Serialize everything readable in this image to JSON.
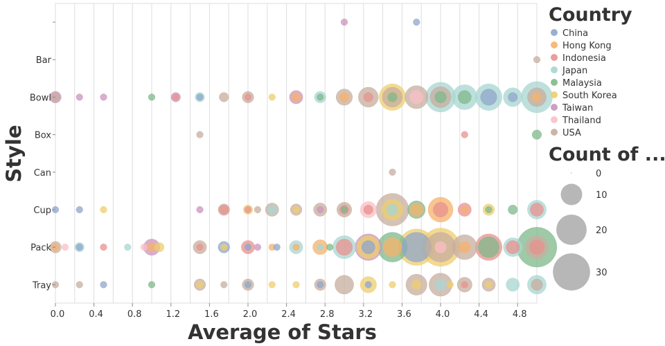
{
  "chart_data": {
    "type": "scatter",
    "title": "",
    "xlabel": "Average of Stars",
    "ylabel": "Style",
    "xlim": [
      0,
      5
    ],
    "x_ticks": [
      0.0,
      0.4,
      0.8,
      1.2,
      1.6,
      2.0,
      2.4,
      2.8,
      3.2,
      3.6,
      4.0,
      4.4,
      4.8
    ],
    "x_tick_labels": [
      "0.0",
      "0.4",
      "0.8",
      "1.2",
      "1.6",
      "2.0",
      "2.4",
      "2.8",
      "3.2",
      "3.6",
      "4.0",
      "4.4",
      "4.8"
    ],
    "x_gridlines": [
      0.0,
      0.2,
      0.4,
      0.6,
      0.8,
      1.0,
      1.2,
      1.4,
      1.6,
      1.8,
      2.0,
      2.2,
      2.4,
      2.6,
      2.8,
      3.0,
      3.2,
      3.4,
      3.6,
      3.8,
      4.0,
      4.2,
      4.4,
      4.6,
      4.8,
      5.0
    ],
    "categories": [
      "",
      "Bar",
      "Bowl",
      "Box",
      "Can",
      "Cup",
      "Pack",
      "Tray"
    ],
    "color_legend": {
      "title": "Country",
      "position": "top-right",
      "items": [
        {
          "label": "China",
          "color": "#8fa6c9"
        },
        {
          "label": "Hong Kong",
          "color": "#f5b26b"
        },
        {
          "label": "Indonesia",
          "color": "#e8928e"
        },
        {
          "label": "Japan",
          "color": "#a8d5d1"
        },
        {
          "label": "Malaysia",
          "color": "#7fb88a"
        },
        {
          "label": "South Korea",
          "color": "#edce6e"
        },
        {
          "label": "Taiwan",
          "color": "#c994bd"
        },
        {
          "label": "Thailand",
          "color": "#f9bfc6"
        },
        {
          "label": "USA",
          "color": "#c7ad9f"
        }
      ]
    },
    "size_legend": {
      "title": "Count of ...",
      "items": [
        {
          "label": "0",
          "value": 0
        },
        {
          "label": "10",
          "value": 10
        },
        {
          "label": "20",
          "value": 20
        },
        {
          "label": "30",
          "value": 30
        }
      ]
    },
    "points": [
      {
        "style": "",
        "x": 3.0,
        "country": "Taiwan",
        "count": 1
      },
      {
        "style": "",
        "x": 3.75,
        "country": "China",
        "count": 1
      },
      {
        "style": "Bar",
        "x": 5.0,
        "country": "USA",
        "count": 1
      },
      {
        "style": "Bowl",
        "x": 0.0,
        "country": "Taiwan",
        "count": 3
      },
      {
        "style": "Bowl",
        "x": 0.0,
        "country": "USA",
        "count": 2
      },
      {
        "style": "Bowl",
        "x": 0.25,
        "country": "Taiwan",
        "count": 1
      },
      {
        "style": "Bowl",
        "x": 0.5,
        "country": "Taiwan",
        "count": 1
      },
      {
        "style": "Bowl",
        "x": 1.0,
        "country": "Malaysia",
        "count": 1
      },
      {
        "style": "Bowl",
        "x": 1.25,
        "country": "Taiwan",
        "count": 2
      },
      {
        "style": "Bowl",
        "x": 1.25,
        "country": "Indonesia",
        "count": 1
      },
      {
        "style": "Bowl",
        "x": 1.5,
        "country": "Japan",
        "count": 2
      },
      {
        "style": "Bowl",
        "x": 1.5,
        "country": "China",
        "count": 1
      },
      {
        "style": "Bowl",
        "x": 1.75,
        "country": "USA",
        "count": 2
      },
      {
        "style": "Bowl",
        "x": 2.0,
        "country": "USA",
        "count": 3
      },
      {
        "style": "Bowl",
        "x": 2.0,
        "country": "Indonesia",
        "count": 1
      },
      {
        "style": "Bowl",
        "x": 2.25,
        "country": "South Korea",
        "count": 1
      },
      {
        "style": "Bowl",
        "x": 2.5,
        "country": "Taiwan",
        "count": 4
      },
      {
        "style": "Bowl",
        "x": 2.5,
        "country": "Hong Kong",
        "count": 2
      },
      {
        "style": "Bowl",
        "x": 2.75,
        "country": "Japan",
        "count": 3
      },
      {
        "style": "Bowl",
        "x": 2.75,
        "country": "Malaysia",
        "count": 1
      },
      {
        "style": "Bowl",
        "x": 3.0,
        "country": "USA",
        "count": 6
      },
      {
        "style": "Bowl",
        "x": 3.0,
        "country": "Hong Kong",
        "count": 2
      },
      {
        "style": "Bowl",
        "x": 3.25,
        "country": "USA",
        "count": 9
      },
      {
        "style": "Bowl",
        "x": 3.25,
        "country": "Indonesia",
        "count": 2
      },
      {
        "style": "Bowl",
        "x": 3.5,
        "country": "South Korea",
        "count": 16
      },
      {
        "style": "Bowl",
        "x": 3.5,
        "country": "USA",
        "count": 9
      },
      {
        "style": "Bowl",
        "x": 3.5,
        "country": "Malaysia",
        "count": 2
      },
      {
        "style": "Bowl",
        "x": 3.75,
        "country": "USA",
        "count": 12
      },
      {
        "style": "Bowl",
        "x": 3.75,
        "country": "Thailand",
        "count": 4
      },
      {
        "style": "Bowl",
        "x": 4.0,
        "country": "Japan",
        "count": 20
      },
      {
        "style": "Bowl",
        "x": 4.0,
        "country": "USA",
        "count": 10
      },
      {
        "style": "Bowl",
        "x": 4.0,
        "country": "Malaysia",
        "count": 3
      },
      {
        "style": "Bowl",
        "x": 4.25,
        "country": "Japan",
        "count": 14
      },
      {
        "style": "Bowl",
        "x": 4.25,
        "country": "Malaysia",
        "count": 4
      },
      {
        "style": "Bowl",
        "x": 4.5,
        "country": "Japan",
        "count": 16
      },
      {
        "style": "Bowl",
        "x": 4.5,
        "country": "China",
        "count": 6
      },
      {
        "style": "Bowl",
        "x": 4.75,
        "country": "Japan",
        "count": 8
      },
      {
        "style": "Bowl",
        "x": 4.75,
        "country": "China",
        "count": 2
      },
      {
        "style": "Bowl",
        "x": 5.0,
        "country": "Japan",
        "count": 22
      },
      {
        "style": "Bowl",
        "x": 5.0,
        "country": "USA",
        "count": 8
      },
      {
        "style": "Bowl",
        "x": 5.0,
        "country": "Hong Kong",
        "count": 2
      },
      {
        "style": "Box",
        "x": 1.5,
        "country": "USA",
        "count": 1
      },
      {
        "style": "Box",
        "x": 4.25,
        "country": "Indonesia",
        "count": 1
      },
      {
        "style": "Box",
        "x": 5.0,
        "country": "Malaysia",
        "count": 2
      },
      {
        "style": "Can",
        "x": 3.5,
        "country": "USA",
        "count": 1
      },
      {
        "style": "Cup",
        "x": 0.0,
        "country": "China",
        "count": 1
      },
      {
        "style": "Cup",
        "x": 0.25,
        "country": "China",
        "count": 1
      },
      {
        "style": "Cup",
        "x": 0.5,
        "country": "South Korea",
        "count": 1
      },
      {
        "style": "Cup",
        "x": 1.5,
        "country": "Taiwan",
        "count": 1
      },
      {
        "style": "Cup",
        "x": 1.75,
        "country": "USA",
        "count": 3
      },
      {
        "style": "Cup",
        "x": 1.75,
        "country": "Indonesia",
        "count": 2
      },
      {
        "style": "Cup",
        "x": 2.0,
        "country": "South Korea",
        "count": 2
      },
      {
        "style": "Cup",
        "x": 2.0,
        "country": "Indonesia",
        "count": 1
      },
      {
        "style": "Cup",
        "x": 2.1,
        "country": "USA",
        "count": 1
      },
      {
        "style": "Cup",
        "x": 2.25,
        "country": "USA",
        "count": 4
      },
      {
        "style": "Cup",
        "x": 2.25,
        "country": "Japan",
        "count": 2
      },
      {
        "style": "Cup",
        "x": 2.5,
        "country": "USA",
        "count": 3
      },
      {
        "style": "Cup",
        "x": 2.5,
        "country": "South Korea",
        "count": 1
      },
      {
        "style": "Cup",
        "x": 2.75,
        "country": "USA",
        "count": 4
      },
      {
        "style": "Cup",
        "x": 2.75,
        "country": "Taiwan",
        "count": 1
      },
      {
        "style": "Cup",
        "x": 3.0,
        "country": "USA",
        "count": 5
      },
      {
        "style": "Cup",
        "x": 3.0,
        "country": "Indonesia",
        "count": 2
      },
      {
        "style": "Cup",
        "x": 3.0,
        "country": "Malaysia",
        "count": 1
      },
      {
        "style": "Cup",
        "x": 3.25,
        "country": "Thailand",
        "count": 6
      },
      {
        "style": "Cup",
        "x": 3.25,
        "country": "Indonesia",
        "count": 2
      },
      {
        "style": "Cup",
        "x": 3.5,
        "country": "USA",
        "count": 24
      },
      {
        "style": "Cup",
        "x": 3.5,
        "country": "South Korea",
        "count": 10
      },
      {
        "style": "Cup",
        "x": 3.5,
        "country": "Japan",
        "count": 3
      },
      {
        "style": "Cup",
        "x": 3.75,
        "country": "Malaysia",
        "count": 7
      },
      {
        "style": "Cup",
        "x": 3.75,
        "country": "Hong Kong",
        "count": 4
      },
      {
        "style": "Cup",
        "x": 4.0,
        "country": "Hong Kong",
        "count": 14
      },
      {
        "style": "Cup",
        "x": 4.0,
        "country": "Indonesia",
        "count": 5
      },
      {
        "style": "Cup",
        "x": 4.25,
        "country": "Indonesia",
        "count": 4
      },
      {
        "style": "Cup",
        "x": 4.25,
        "country": "Hong Kong",
        "count": 1
      },
      {
        "style": "Cup",
        "x": 4.5,
        "country": "South Korea",
        "count": 3
      },
      {
        "style": "Cup",
        "x": 4.5,
        "country": "Malaysia",
        "count": 1
      },
      {
        "style": "Cup",
        "x": 4.75,
        "country": "Malaysia",
        "count": 2
      },
      {
        "style": "Cup",
        "x": 5.0,
        "country": "Japan",
        "count": 8
      },
      {
        "style": "Cup",
        "x": 5.0,
        "country": "Indonesia",
        "count": 4
      },
      {
        "style": "Pack",
        "x": 0.0,
        "country": "USA",
        "count": 3
      },
      {
        "style": "Pack",
        "x": 0.0,
        "country": "Hong Kong",
        "count": 1
      },
      {
        "style": "Pack",
        "x": 0.1,
        "country": "Thailand",
        "count": 1
      },
      {
        "style": "Pack",
        "x": 0.25,
        "country": "Japan",
        "count": 2
      },
      {
        "style": "Pack",
        "x": 0.25,
        "country": "China",
        "count": 1
      },
      {
        "style": "Pack",
        "x": 0.5,
        "country": "Indonesia",
        "count": 1
      },
      {
        "style": "Pack",
        "x": 0.75,
        "country": "Japan",
        "count": 1
      },
      {
        "style": "Pack",
        "x": 0.92,
        "country": "Thailand",
        "count": 1
      },
      {
        "style": "Pack",
        "x": 1.0,
        "country": "Taiwan",
        "count": 6
      },
      {
        "style": "Pack",
        "x": 1.0,
        "country": "Hong Kong",
        "count": 2
      },
      {
        "style": "Pack",
        "x": 1.08,
        "country": "South Korea",
        "count": 2
      },
      {
        "style": "Pack",
        "x": 1.5,
        "country": "USA",
        "count": 4
      },
      {
        "style": "Pack",
        "x": 1.5,
        "country": "Indonesia",
        "count": 1
      },
      {
        "style": "Pack",
        "x": 1.75,
        "country": "China",
        "count": 3
      },
      {
        "style": "Pack",
        "x": 1.75,
        "country": "South Korea",
        "count": 1
      },
      {
        "style": "Pack",
        "x": 2.0,
        "country": "Indonesia",
        "count": 4
      },
      {
        "style": "Pack",
        "x": 2.0,
        "country": "China",
        "count": 1
      },
      {
        "style": "Pack",
        "x": 2.1,
        "country": "Taiwan",
        "count": 1
      },
      {
        "style": "Pack",
        "x": 2.25,
        "country": "Hong Kong",
        "count": 1
      },
      {
        "style": "Pack",
        "x": 2.3,
        "country": "China",
        "count": 1
      },
      {
        "style": "Pack",
        "x": 2.5,
        "country": "Japan",
        "count": 4
      },
      {
        "style": "Pack",
        "x": 2.5,
        "country": "Hong Kong",
        "count": 1
      },
      {
        "style": "Pack",
        "x": 2.75,
        "country": "Hong Kong",
        "count": 5
      },
      {
        "style": "Pack",
        "x": 2.75,
        "country": "Japan",
        "count": 1
      },
      {
        "style": "Pack",
        "x": 2.85,
        "country": "Malaysia",
        "count": 1
      },
      {
        "style": "Pack",
        "x": 3.0,
        "country": "Japan",
        "count": 12
      },
      {
        "style": "Pack",
        "x": 3.0,
        "country": "Indonesia",
        "count": 6
      },
      {
        "style": "Pack",
        "x": 3.25,
        "country": "Taiwan",
        "count": 16
      },
      {
        "style": "Pack",
        "x": 3.25,
        "country": "South Korea",
        "count": 12
      },
      {
        "style": "Pack",
        "x": 3.25,
        "country": "China",
        "count": 4
      },
      {
        "style": "Pack",
        "x": 3.5,
        "country": "Malaysia",
        "count": 20
      },
      {
        "style": "Pack",
        "x": 3.5,
        "country": "Hong Kong",
        "count": 8
      },
      {
        "style": "Pack",
        "x": 3.75,
        "country": "South Korea",
        "count": 30
      },
      {
        "style": "Pack",
        "x": 3.75,
        "country": "China",
        "count": 20
      },
      {
        "style": "Pack",
        "x": 4.0,
        "country": "South Korea",
        "count": 33
      },
      {
        "style": "Pack",
        "x": 4.0,
        "country": "USA",
        "count": 20
      },
      {
        "style": "Pack",
        "x": 4.0,
        "country": "Thailand",
        "count": 3
      },
      {
        "style": "Pack",
        "x": 4.25,
        "country": "USA",
        "count": 14
      },
      {
        "style": "Pack",
        "x": 4.25,
        "country": "Hong Kong",
        "count": 3
      },
      {
        "style": "Pack",
        "x": 4.5,
        "country": "Indonesia",
        "count": 16
      },
      {
        "style": "Pack",
        "x": 4.5,
        "country": "Malaysia",
        "count": 10
      },
      {
        "style": "Pack",
        "x": 4.75,
        "country": "Japan",
        "count": 8
      },
      {
        "style": "Pack",
        "x": 4.75,
        "country": "Indonesia",
        "count": 4
      },
      {
        "style": "Pack",
        "x": 5.0,
        "country": "Malaysia",
        "count": 36
      },
      {
        "style": "Pack",
        "x": 5.0,
        "country": "USA",
        "count": 12
      },
      {
        "style": "Pack",
        "x": 5.0,
        "country": "Indonesia",
        "count": 5
      },
      {
        "style": "Tray",
        "x": 0.0,
        "country": "USA",
        "count": 1
      },
      {
        "style": "Tray",
        "x": 0.25,
        "country": "USA",
        "count": 1
      },
      {
        "style": "Tray",
        "x": 0.5,
        "country": "China",
        "count": 1
      },
      {
        "style": "Tray",
        "x": 1.0,
        "country": "Malaysia",
        "count": 1
      },
      {
        "style": "Tray",
        "x": 1.5,
        "country": "USA",
        "count": 3
      },
      {
        "style": "Tray",
        "x": 1.5,
        "country": "South Korea",
        "count": 1
      },
      {
        "style": "Tray",
        "x": 1.75,
        "country": "USA",
        "count": 1
      },
      {
        "style": "Tray",
        "x": 2.0,
        "country": "USA",
        "count": 3
      },
      {
        "style": "Tray",
        "x": 2.0,
        "country": "China",
        "count": 1
      },
      {
        "style": "Tray",
        "x": 2.25,
        "country": "South Korea",
        "count": 1
      },
      {
        "style": "Tray",
        "x": 2.5,
        "country": "South Korea",
        "count": 1
      },
      {
        "style": "Tray",
        "x": 2.75,
        "country": "USA",
        "count": 3
      },
      {
        "style": "Tray",
        "x": 2.75,
        "country": "China",
        "count": 1
      },
      {
        "style": "Tray",
        "x": 3.0,
        "country": "USA",
        "count": 8
      },
      {
        "style": "Tray",
        "x": 3.25,
        "country": "South Korea",
        "count": 6
      },
      {
        "style": "Tray",
        "x": 3.25,
        "country": "China",
        "count": 1
      },
      {
        "style": "Tray",
        "x": 3.5,
        "country": "South Korea",
        "count": 1
      },
      {
        "style": "Tray",
        "x": 3.75,
        "country": "USA",
        "count": 10
      },
      {
        "style": "Tray",
        "x": 3.75,
        "country": "South Korea",
        "count": 2
      },
      {
        "style": "Tray",
        "x": 4.0,
        "country": "USA",
        "count": 12
      },
      {
        "style": "Tray",
        "x": 4.0,
        "country": "Japan",
        "count": 3
      },
      {
        "style": "Tray",
        "x": 4.1,
        "country": "South Korea",
        "count": 1
      },
      {
        "style": "Tray",
        "x": 4.25,
        "country": "USA",
        "count": 5
      },
      {
        "style": "Tray",
        "x": 4.25,
        "country": "Indonesia",
        "count": 1
      },
      {
        "style": "Tray",
        "x": 4.5,
        "country": "USA",
        "count": 4
      },
      {
        "style": "Tray",
        "x": 4.5,
        "country": "South Korea",
        "count": 1
      },
      {
        "style": "Tray",
        "x": 4.75,
        "country": "Japan",
        "count": 4
      },
      {
        "style": "Tray",
        "x": 5.0,
        "country": "Japan",
        "count": 8
      },
      {
        "style": "Tray",
        "x": 5.0,
        "country": "USA",
        "count": 3
      }
    ]
  }
}
